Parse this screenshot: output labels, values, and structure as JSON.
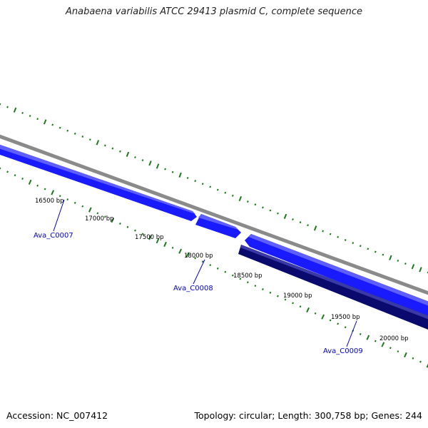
{
  "title": "Anabaena variabilis ATCC 29413 plasmid C, complete sequence",
  "footer": {
    "accession": "Accession: NC_007412",
    "summary": "Topology: circular; Length: 300,758 bp; Genes: 244"
  },
  "colors": {
    "backbone": "#8a8a8a",
    "forward_gene": "#1a1aff",
    "forward_gene_highlight": "#5f5fff",
    "reverse_gene": "#0a0a6e",
    "reverse_gene_highlight": "#3a3aa6",
    "gc_ticks": "#1f7a1f",
    "gene_label": "#0000cc"
  },
  "scale_labels": [
    "16500 bp",
    "17000 bp",
    "17500 bp",
    "18000 bp",
    "18500 bp",
    "19000 bp",
    "19500 bp",
    "20000 bp"
  ],
  "genes": [
    {
      "name": "Ava_C0007",
      "strand": "forward"
    },
    {
      "name": "Ava_C0008",
      "strand": "forward"
    },
    {
      "name": "Ava_C0009",
      "strand": "reverse"
    }
  ]
}
